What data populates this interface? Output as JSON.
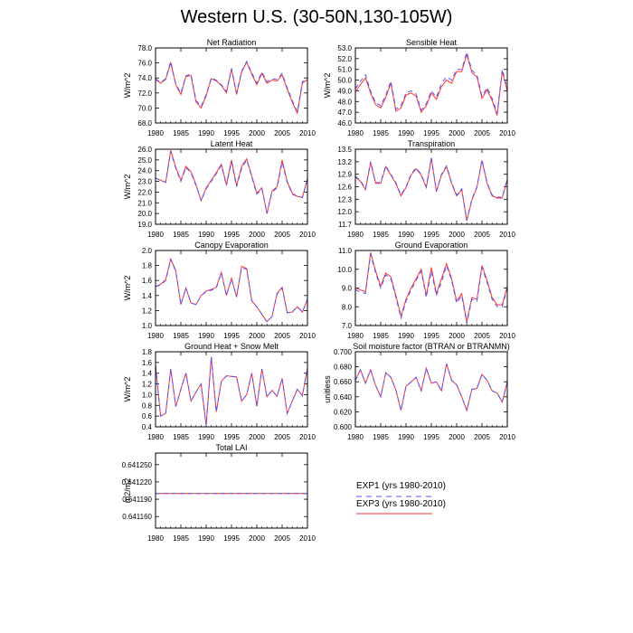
{
  "figure_title": "Western U.S. (30-50N,130-105W)",
  "x_tick_labels": [
    "1980",
    "1985",
    "1990",
    "1995",
    "2000",
    "2005",
    "2010"
  ],
  "colors": {
    "exp1": "#5555ff",
    "exp3": "#ff3333",
    "axis": "#000000"
  },
  "legend": {
    "items": [
      {
        "label": "EXP1 (yrs 1980-2010)",
        "color": "#5555ff",
        "style": "dashed"
      },
      {
        "label": "EXP3 (yrs 1980-2010)",
        "color": "#ff3333",
        "style": "solid"
      }
    ]
  },
  "chart_data": [
    {
      "type": "line",
      "title": "Net Radiation",
      "ylabel": "W/m^2",
      "xlim": [
        1980,
        2010
      ],
      "ylim": [
        68.0,
        78.0
      ],
      "yticks": [
        "68.0",
        "70.0",
        "72.0",
        "74.0",
        "76.0",
        "78.0"
      ],
      "x": [
        1980,
        1981,
        1982,
        1983,
        1984,
        1985,
        1986,
        1987,
        1988,
        1989,
        1990,
        1991,
        1992,
        1993,
        1994,
        1995,
        1996,
        1997,
        1998,
        1999,
        2000,
        2001,
        2002,
        2003,
        2004,
        2005,
        2006,
        2007,
        2008,
        2009,
        2010
      ],
      "series": [
        {
          "name": "EXP1",
          "values": [
            73.9,
            73.4,
            73.9,
            76.2,
            73.2,
            72.0,
            74.3,
            74.5,
            71.0,
            70.2,
            71.8,
            74.0,
            73.7,
            73.1,
            72.2,
            75.3,
            72.0,
            74.9,
            76.2,
            74.7,
            73.3,
            74.8,
            73.5,
            73.9,
            73.8,
            74.6,
            72.7,
            71.0,
            69.5,
            73.5,
            73.9
          ]
        },
        {
          "name": "EXP3",
          "values": [
            73.8,
            73.3,
            73.8,
            76.0,
            73.1,
            71.8,
            74.2,
            74.3,
            70.8,
            70.0,
            71.6,
            73.9,
            73.6,
            73.0,
            72.0,
            75.2,
            71.8,
            74.8,
            76.1,
            74.5,
            73.1,
            74.6,
            73.3,
            73.7,
            73.6,
            74.4,
            72.5,
            70.8,
            69.3,
            73.3,
            73.8
          ]
        }
      ]
    },
    {
      "type": "line",
      "title": "Sensible Heat",
      "ylabel": "W/m^2",
      "xlim": [
        1980,
        2010
      ],
      "ylim": [
        46.0,
        53.0
      ],
      "yticks": [
        "46.0",
        "47.0",
        "48.0",
        "49.0",
        "50.0",
        "51.0",
        "52.0",
        "53.0"
      ],
      "x": [
        1980,
        1981,
        1982,
        1983,
        1984,
        1985,
        1986,
        1987,
        1988,
        1989,
        1990,
        1991,
        1992,
        1993,
        1994,
        1995,
        1996,
        1997,
        1998,
        1999,
        2000,
        2001,
        2002,
        2003,
        2004,
        2005,
        2006,
        2007,
        2008,
        2009,
        2010
      ],
      "series": [
        {
          "name": "EXP1",
          "values": [
            49.2,
            49.9,
            50.5,
            49.0,
            47.9,
            47.6,
            48.6,
            49.9,
            47.3,
            47.6,
            48.8,
            49.0,
            48.7,
            47.2,
            47.8,
            49.0,
            48.4,
            49.7,
            50.3,
            50.0,
            51.0,
            51.0,
            52.6,
            50.9,
            50.5,
            48.5,
            49.3,
            48.3,
            46.9,
            51.0,
            49.2
          ]
        },
        {
          "name": "EXP3",
          "values": [
            48.9,
            49.6,
            50.2,
            48.8,
            47.7,
            47.4,
            48.4,
            49.7,
            47.1,
            47.4,
            48.6,
            48.8,
            48.5,
            47.0,
            47.6,
            48.8,
            48.2,
            49.4,
            50.0,
            49.7,
            50.8,
            50.8,
            52.4,
            50.7,
            50.3,
            48.3,
            49.1,
            48.1,
            46.7,
            50.8,
            49.0
          ]
        }
      ]
    },
    {
      "type": "line",
      "title": "Latent Heat",
      "ylabel": "W/m^2",
      "xlim": [
        1980,
        2010
      ],
      "ylim": [
        19.0,
        26.0
      ],
      "yticks": [
        "19.0",
        "20.0",
        "21.0",
        "22.0",
        "23.0",
        "24.0",
        "25.0",
        "26.0"
      ],
      "x": [
        1980,
        1981,
        1982,
        1983,
        1984,
        1985,
        1986,
        1987,
        1988,
        1989,
        1990,
        1991,
        1992,
        1993,
        1994,
        1995,
        1996,
        1997,
        1998,
        1999,
        2000,
        2001,
        2002,
        2003,
        2004,
        2005,
        2006,
        2007,
        2008,
        2009,
        2010
      ],
      "series": [
        {
          "name": "EXP1",
          "values": [
            23.3,
            23.1,
            22.9,
            25.8,
            24.2,
            23.0,
            24.3,
            23.8,
            22.6,
            21.2,
            22.3,
            23.0,
            23.7,
            24.5,
            22.6,
            24.8,
            22.5,
            24.2,
            25.0,
            23.4,
            21.8,
            22.3,
            20.0,
            22.0,
            22.4,
            24.8,
            22.9,
            21.8,
            21.6,
            21.5,
            23.2
          ]
        },
        {
          "name": "EXP3",
          "values": [
            23.3,
            23.1,
            22.9,
            25.9,
            24.3,
            23.1,
            24.4,
            23.9,
            22.7,
            21.2,
            22.4,
            23.1,
            23.8,
            24.6,
            22.7,
            25.0,
            22.6,
            24.4,
            25.1,
            23.5,
            21.9,
            22.4,
            20.0,
            22.1,
            22.5,
            25.0,
            23.0,
            21.9,
            21.6,
            21.5,
            23.3
          ]
        }
      ]
    },
    {
      "type": "line",
      "title": "Transpiration",
      "ylabel": "",
      "xlim": [
        1980,
        2010
      ],
      "ylim": [
        11.7,
        13.5
      ],
      "yticks": [
        "11.7",
        "12.0",
        "12.3",
        "12.6",
        "12.9",
        "13.2",
        "13.5"
      ],
      "x": [
        1980,
        1981,
        1982,
        1983,
        1984,
        1985,
        1986,
        1987,
        1988,
        1989,
        1990,
        1991,
        1992,
        1993,
        1994,
        1995,
        1996,
        1997,
        1998,
        1999,
        2000,
        2001,
        2002,
        2003,
        2004,
        2005,
        2006,
        2007,
        2008,
        2009,
        2010
      ],
      "series": [
        {
          "name": "EXP1",
          "values": [
            12.85,
            12.75,
            12.55,
            13.2,
            12.7,
            12.7,
            13.1,
            12.9,
            12.7,
            12.4,
            12.6,
            12.9,
            13.05,
            12.9,
            12.6,
            13.3,
            12.5,
            12.9,
            13.1,
            12.7,
            12.4,
            12.55,
            11.8,
            12.3,
            12.6,
            13.25,
            12.7,
            12.4,
            12.35,
            12.35,
            12.8
          ]
        },
        {
          "name": "EXP3",
          "values": [
            12.83,
            12.73,
            12.53,
            13.18,
            12.68,
            12.68,
            13.08,
            12.88,
            12.68,
            12.38,
            12.58,
            12.88,
            13.03,
            12.88,
            12.58,
            13.28,
            12.48,
            12.88,
            13.08,
            12.68,
            12.38,
            12.53,
            11.78,
            12.28,
            12.58,
            13.23,
            12.68,
            12.38,
            12.33,
            12.33,
            12.78
          ]
        }
      ]
    },
    {
      "type": "line",
      "title": "Canopy Evaporation",
      "ylabel": "W/m^2",
      "xlim": [
        1980,
        2010
      ],
      "ylim": [
        1.0,
        2.0
      ],
      "yticks": [
        "1.0",
        "1.2",
        "1.4",
        "1.6",
        "1.8",
        "2.0"
      ],
      "x": [
        1980,
        1981,
        1982,
        1983,
        1984,
        1985,
        1986,
        1987,
        1988,
        1989,
        1990,
        1991,
        1992,
        1993,
        1994,
        1995,
        1996,
        1997,
        1998,
        1999,
        2000,
        2001,
        2002,
        2003,
        2004,
        2005,
        2006,
        2007,
        2008,
        2009,
        2010
      ],
      "series": [
        {
          "name": "EXP1",
          "values": [
            1.52,
            1.54,
            1.6,
            1.88,
            1.72,
            1.28,
            1.5,
            1.3,
            1.28,
            1.4,
            1.45,
            1.47,
            1.5,
            1.7,
            1.4,
            1.62,
            1.38,
            1.77,
            1.75,
            1.33,
            1.25,
            1.15,
            1.05,
            1.12,
            1.42,
            1.5,
            1.17,
            1.18,
            1.25,
            1.18,
            1.35
          ]
        },
        {
          "name": "EXP3",
          "values": [
            1.52,
            1.55,
            1.61,
            1.89,
            1.73,
            1.28,
            1.5,
            1.3,
            1.28,
            1.4,
            1.46,
            1.48,
            1.51,
            1.71,
            1.4,
            1.63,
            1.38,
            1.79,
            1.76,
            1.33,
            1.25,
            1.15,
            1.05,
            1.12,
            1.43,
            1.51,
            1.17,
            1.18,
            1.25,
            1.18,
            1.35
          ]
        }
      ]
    },
    {
      "type": "line",
      "title": "Ground Evaporation",
      "ylabel": "",
      "xlim": [
        1980,
        2010
      ],
      "ylim": [
        7.0,
        11.0
      ],
      "yticks": [
        "7.0",
        "8.0",
        "9.0",
        "10.0",
        "11.0"
      ],
      "x": [
        1980,
        1981,
        1982,
        1983,
        1984,
        1985,
        1986,
        1987,
        1988,
        1989,
        1990,
        1991,
        1992,
        1993,
        1994,
        1995,
        1996,
        1997,
        1998,
        1999,
        2000,
        2001,
        2002,
        2003,
        2004,
        2005,
        2006,
        2007,
        2008,
        2009,
        2010
      ],
      "series": [
        {
          "name": "EXP1",
          "values": [
            8.9,
            8.8,
            8.7,
            10.8,
            9.8,
            9.0,
            9.7,
            9.5,
            8.5,
            7.4,
            8.3,
            8.9,
            9.4,
            9.9,
            8.5,
            9.9,
            8.6,
            9.3,
            10.2,
            9.4,
            8.2,
            8.6,
            7.1,
            8.4,
            8.3,
            10.1,
            9.3,
            8.4,
            8.0,
            8.0,
            9.0
          ]
        },
        {
          "name": "EXP3",
          "values": [
            9.0,
            8.9,
            8.8,
            10.9,
            9.9,
            9.1,
            9.8,
            9.6,
            8.6,
            7.5,
            8.4,
            9.0,
            9.5,
            10.0,
            8.6,
            10.1,
            8.7,
            9.5,
            10.3,
            9.5,
            8.3,
            8.7,
            7.2,
            8.5,
            8.4,
            10.2,
            9.4,
            8.5,
            8.1,
            8.1,
            9.1
          ]
        }
      ]
    },
    {
      "type": "line",
      "title": "Ground Heat + Snow Melt",
      "ylabel": "W/m^2",
      "xlim": [
        1980,
        2010
      ],
      "ylim": [
        0.4,
        1.8
      ],
      "yticks": [
        "0.4",
        "0.6",
        "0.8",
        "1.0",
        "1.2",
        "1.4",
        "1.6",
        "1.8"
      ],
      "x": [
        1980,
        1981,
        1982,
        1983,
        1984,
        1985,
        1986,
        1987,
        1988,
        1989,
        1990,
        1991,
        1992,
        1993,
        1994,
        1995,
        1996,
        1997,
        1998,
        1999,
        2000,
        2001,
        2002,
        2003,
        2004,
        2005,
        2006,
        2007,
        2008,
        2009,
        2010
      ],
      "series": [
        {
          "name": "EXP1",
          "values": [
            1.55,
            0.6,
            0.65,
            1.48,
            0.78,
            1.1,
            1.4,
            0.88,
            1.05,
            1.2,
            0.42,
            1.7,
            0.68,
            1.25,
            1.35,
            1.34,
            1.33,
            0.88,
            1.0,
            1.4,
            0.78,
            1.48,
            0.96,
            1.08,
            0.97,
            1.3,
            0.65,
            0.88,
            1.1,
            0.98,
            1.5
          ]
        },
        {
          "name": "EXP3",
          "values": [
            1.55,
            0.6,
            0.65,
            1.48,
            0.78,
            1.1,
            1.4,
            0.88,
            1.05,
            1.2,
            0.42,
            1.7,
            0.68,
            1.25,
            1.35,
            1.34,
            1.33,
            0.88,
            1.0,
            1.4,
            0.78,
            1.48,
            0.96,
            1.08,
            0.97,
            1.3,
            0.65,
            0.88,
            1.1,
            0.98,
            1.5
          ]
        }
      ]
    },
    {
      "type": "line",
      "title": "Soil moisture factor (BTRAN or BTRANMN)",
      "ylabel": "unitless",
      "xlim": [
        1980,
        2010
      ],
      "ylim": [
        0.6,
        0.7
      ],
      "yticks": [
        "0.600",
        "0.620",
        "0.640",
        "0.660",
        "0.680",
        "0.700"
      ],
      "x": [
        1980,
        1981,
        1982,
        1983,
        1984,
        1985,
        1986,
        1987,
        1988,
        1989,
        1990,
        1991,
        1992,
        1993,
        1994,
        1995,
        1996,
        1997,
        1998,
        1999,
        2000,
        2001,
        2002,
        2003,
        2004,
        2005,
        2006,
        2007,
        2008,
        2009,
        2010
      ],
      "series": [
        {
          "name": "EXP1",
          "values": [
            0.662,
            0.676,
            0.658,
            0.676,
            0.655,
            0.64,
            0.672,
            0.666,
            0.649,
            0.622,
            0.654,
            0.66,
            0.666,
            0.648,
            0.678,
            0.658,
            0.66,
            0.648,
            0.684,
            0.662,
            0.656,
            0.64,
            0.622,
            0.65,
            0.651,
            0.67,
            0.662,
            0.648,
            0.645,
            0.633,
            0.66
          ]
        },
        {
          "name": "EXP3",
          "values": [
            0.662,
            0.676,
            0.658,
            0.676,
            0.655,
            0.64,
            0.672,
            0.666,
            0.649,
            0.622,
            0.654,
            0.66,
            0.666,
            0.648,
            0.678,
            0.658,
            0.66,
            0.648,
            0.684,
            0.662,
            0.656,
            0.64,
            0.622,
            0.65,
            0.651,
            0.67,
            0.662,
            0.648,
            0.645,
            0.633,
            0.66
          ]
        }
      ]
    },
    {
      "type": "line",
      "title": "Total LAI",
      "ylabel": "m2/m2",
      "xlim": [
        1980,
        2010
      ],
      "ylim": [
        0.64114,
        0.64127
      ],
      "yticks": [
        "0.641160",
        "0.641190",
        "0.641220",
        "0.641250"
      ],
      "x": [
        1980,
        2010
      ],
      "series": [
        {
          "name": "EXP1",
          "values": [
            0.6412,
            0.6412
          ]
        },
        {
          "name": "EXP3",
          "values": [
            0.6412,
            0.6412
          ]
        }
      ]
    }
  ]
}
